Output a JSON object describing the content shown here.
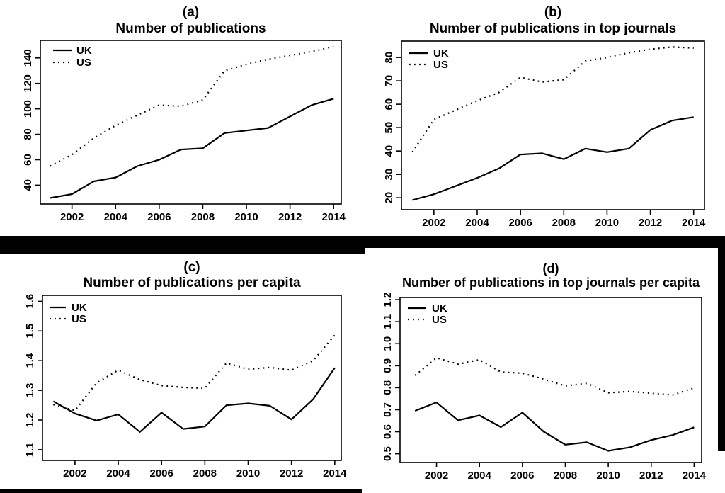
{
  "figure": {
    "background_color": "#ffffff",
    "ink_color": "#000000"
  },
  "legend": {
    "uk_label": "UK",
    "us_label": "US"
  },
  "chart_data": [
    {
      "id": "a",
      "type": "line",
      "panel_label": "(a)",
      "title": "Number of publications",
      "x": [
        2001,
        2002,
        2003,
        2004,
        2005,
        2006,
        2007,
        2008,
        2009,
        2010,
        2011,
        2012,
        2013,
        2014
      ],
      "xticks": [
        2002,
        2004,
        2006,
        2008,
        2010,
        2012,
        2014
      ],
      "xticklabels": [
        "2002",
        "2004",
        "2006",
        "2008",
        "2010",
        "2012",
        "2014"
      ],
      "yticks": [
        40,
        60,
        80,
        100,
        120,
        140
      ],
      "yticklabels": [
        "40",
        "60",
        "80",
        "100",
        "120",
        "140"
      ],
      "xlim": [
        2000.55,
        2014.35
      ],
      "ylim": [
        25.2,
        153.8
      ],
      "grid": false,
      "legend_position": "top-left",
      "series": [
        {
          "name": "UK",
          "line_style": "solid",
          "color": "#000000",
          "values": [
            30,
            33,
            43,
            46,
            55,
            60,
            68,
            69,
            81,
            83,
            85,
            94,
            103,
            108
          ]
        },
        {
          "name": "US",
          "line_style": "dotted",
          "color": "#000000",
          "values": [
            55,
            64,
            77,
            87,
            95,
            103,
            102,
            107,
            130,
            135,
            139,
            142,
            145,
            149
          ]
        }
      ]
    },
    {
      "id": "b",
      "type": "line",
      "panel_label": "(b)",
      "title": "Number of publications in top journals",
      "x": [
        2001,
        2002,
        2003,
        2004,
        2005,
        2006,
        2007,
        2008,
        2009,
        2010,
        2011,
        2012,
        2013,
        2014
      ],
      "xticks": [
        2002,
        2004,
        2006,
        2008,
        2010,
        2012,
        2014
      ],
      "xticklabels": [
        "2002",
        "2004",
        "2006",
        "2008",
        "2010",
        "2012",
        "2014"
      ],
      "yticks": [
        20,
        30,
        40,
        50,
        60,
        70,
        80
      ],
      "yticklabels": [
        "20",
        "30",
        "40",
        "50",
        "60",
        "70",
        "80"
      ],
      "xlim": [
        2000.5,
        2014.5
      ],
      "ylim": [
        14.9,
        87.0
      ],
      "grid": false,
      "legend_position": "top-left",
      "series": [
        {
          "name": "UK",
          "line_style": "solid",
          "color": "#000000",
          "values": [
            19,
            21.5,
            25,
            28.5,
            32.5,
            38.5,
            39,
            36.5,
            41,
            39.5,
            41,
            49,
            53,
            54.5
          ]
        },
        {
          "name": "US",
          "line_style": "dotted",
          "color": "#000000",
          "values": [
            39.5,
            53.5,
            57.5,
            61.5,
            65,
            71.5,
            69.5,
            70.5,
            78.5,
            80,
            82,
            83.5,
            84.5,
            84
          ]
        }
      ]
    },
    {
      "id": "c",
      "type": "line",
      "panel_label": "(c)",
      "title": "Number of publications per capita",
      "x": [
        2001,
        2002,
        2003,
        2004,
        2005,
        2006,
        2007,
        2008,
        2009,
        2010,
        2011,
        2012,
        2013,
        2014
      ],
      "xticks": [
        2002,
        2004,
        2006,
        2008,
        2010,
        2012,
        2014
      ],
      "xticklabels": [
        "2002",
        "2004",
        "2006",
        "2008",
        "2010",
        "2012",
        "2014"
      ],
      "yticks": [
        1.1,
        1.2,
        1.3,
        1.4,
        1.5,
        1.6
      ],
      "yticklabels": [
        "1.1",
        "1.2",
        "1.3",
        "1.4",
        "1.5",
        "1.6"
      ],
      "xlim": [
        2000.5,
        2014.3
      ],
      "ylim": [
        1.064,
        1.62
      ],
      "grid": false,
      "legend_position": "top-left",
      "series": [
        {
          "name": "UK",
          "line_style": "solid",
          "color": "#000000",
          "values": [
            1.263,
            1.222,
            1.198,
            1.219,
            1.16,
            1.225,
            1.17,
            1.178,
            1.25,
            1.256,
            1.248,
            1.202,
            1.27,
            1.376
          ]
        },
        {
          "name": "US",
          "line_style": "dotted",
          "color": "#000000",
          "values": [
            1.252,
            1.232,
            1.325,
            1.368,
            1.336,
            1.316,
            1.31,
            1.307,
            1.392,
            1.371,
            1.377,
            1.368,
            1.4,
            1.486
          ]
        }
      ]
    },
    {
      "id": "d",
      "type": "line",
      "panel_label": "(d)",
      "title": "Number of publications in top journals per capita",
      "x": [
        2001,
        2002,
        2003,
        2004,
        2005,
        2006,
        2007,
        2008,
        2009,
        2010,
        2011,
        2012,
        2013,
        2014
      ],
      "xticks": [
        2002,
        2004,
        2006,
        2008,
        2010,
        2012,
        2014
      ],
      "xticklabels": [
        "2002",
        "2004",
        "2006",
        "2008",
        "2010",
        "2012",
        "2014"
      ],
      "yticks": [
        0.5,
        0.6,
        0.7,
        0.8,
        0.9,
        1.0,
        1.1,
        1.2
      ],
      "yticklabels": [
        "0.5",
        "0.6",
        "0.7",
        "0.8",
        "0.9",
        "1.0",
        "1.1",
        "1.2"
      ],
      "xlim": [
        2000.3,
        2014.35
      ],
      "ylim": [
        0.46,
        1.21
      ],
      "grid": false,
      "legend_position": "top-left",
      "series": [
        {
          "name": "UK",
          "line_style": "solid",
          "color": "#000000",
          "values": [
            0.695,
            0.733,
            0.652,
            0.674,
            0.621,
            0.687,
            0.6,
            0.541,
            0.552,
            0.513,
            0.529,
            0.562,
            0.585,
            0.62
          ]
        },
        {
          "name": "US",
          "line_style": "dotted",
          "color": "#000000",
          "values": [
            0.856,
            0.936,
            0.907,
            0.927,
            0.871,
            0.866,
            0.839,
            0.808,
            0.82,
            0.777,
            0.783,
            0.775,
            0.767,
            0.799
          ]
        }
      ]
    }
  ]
}
